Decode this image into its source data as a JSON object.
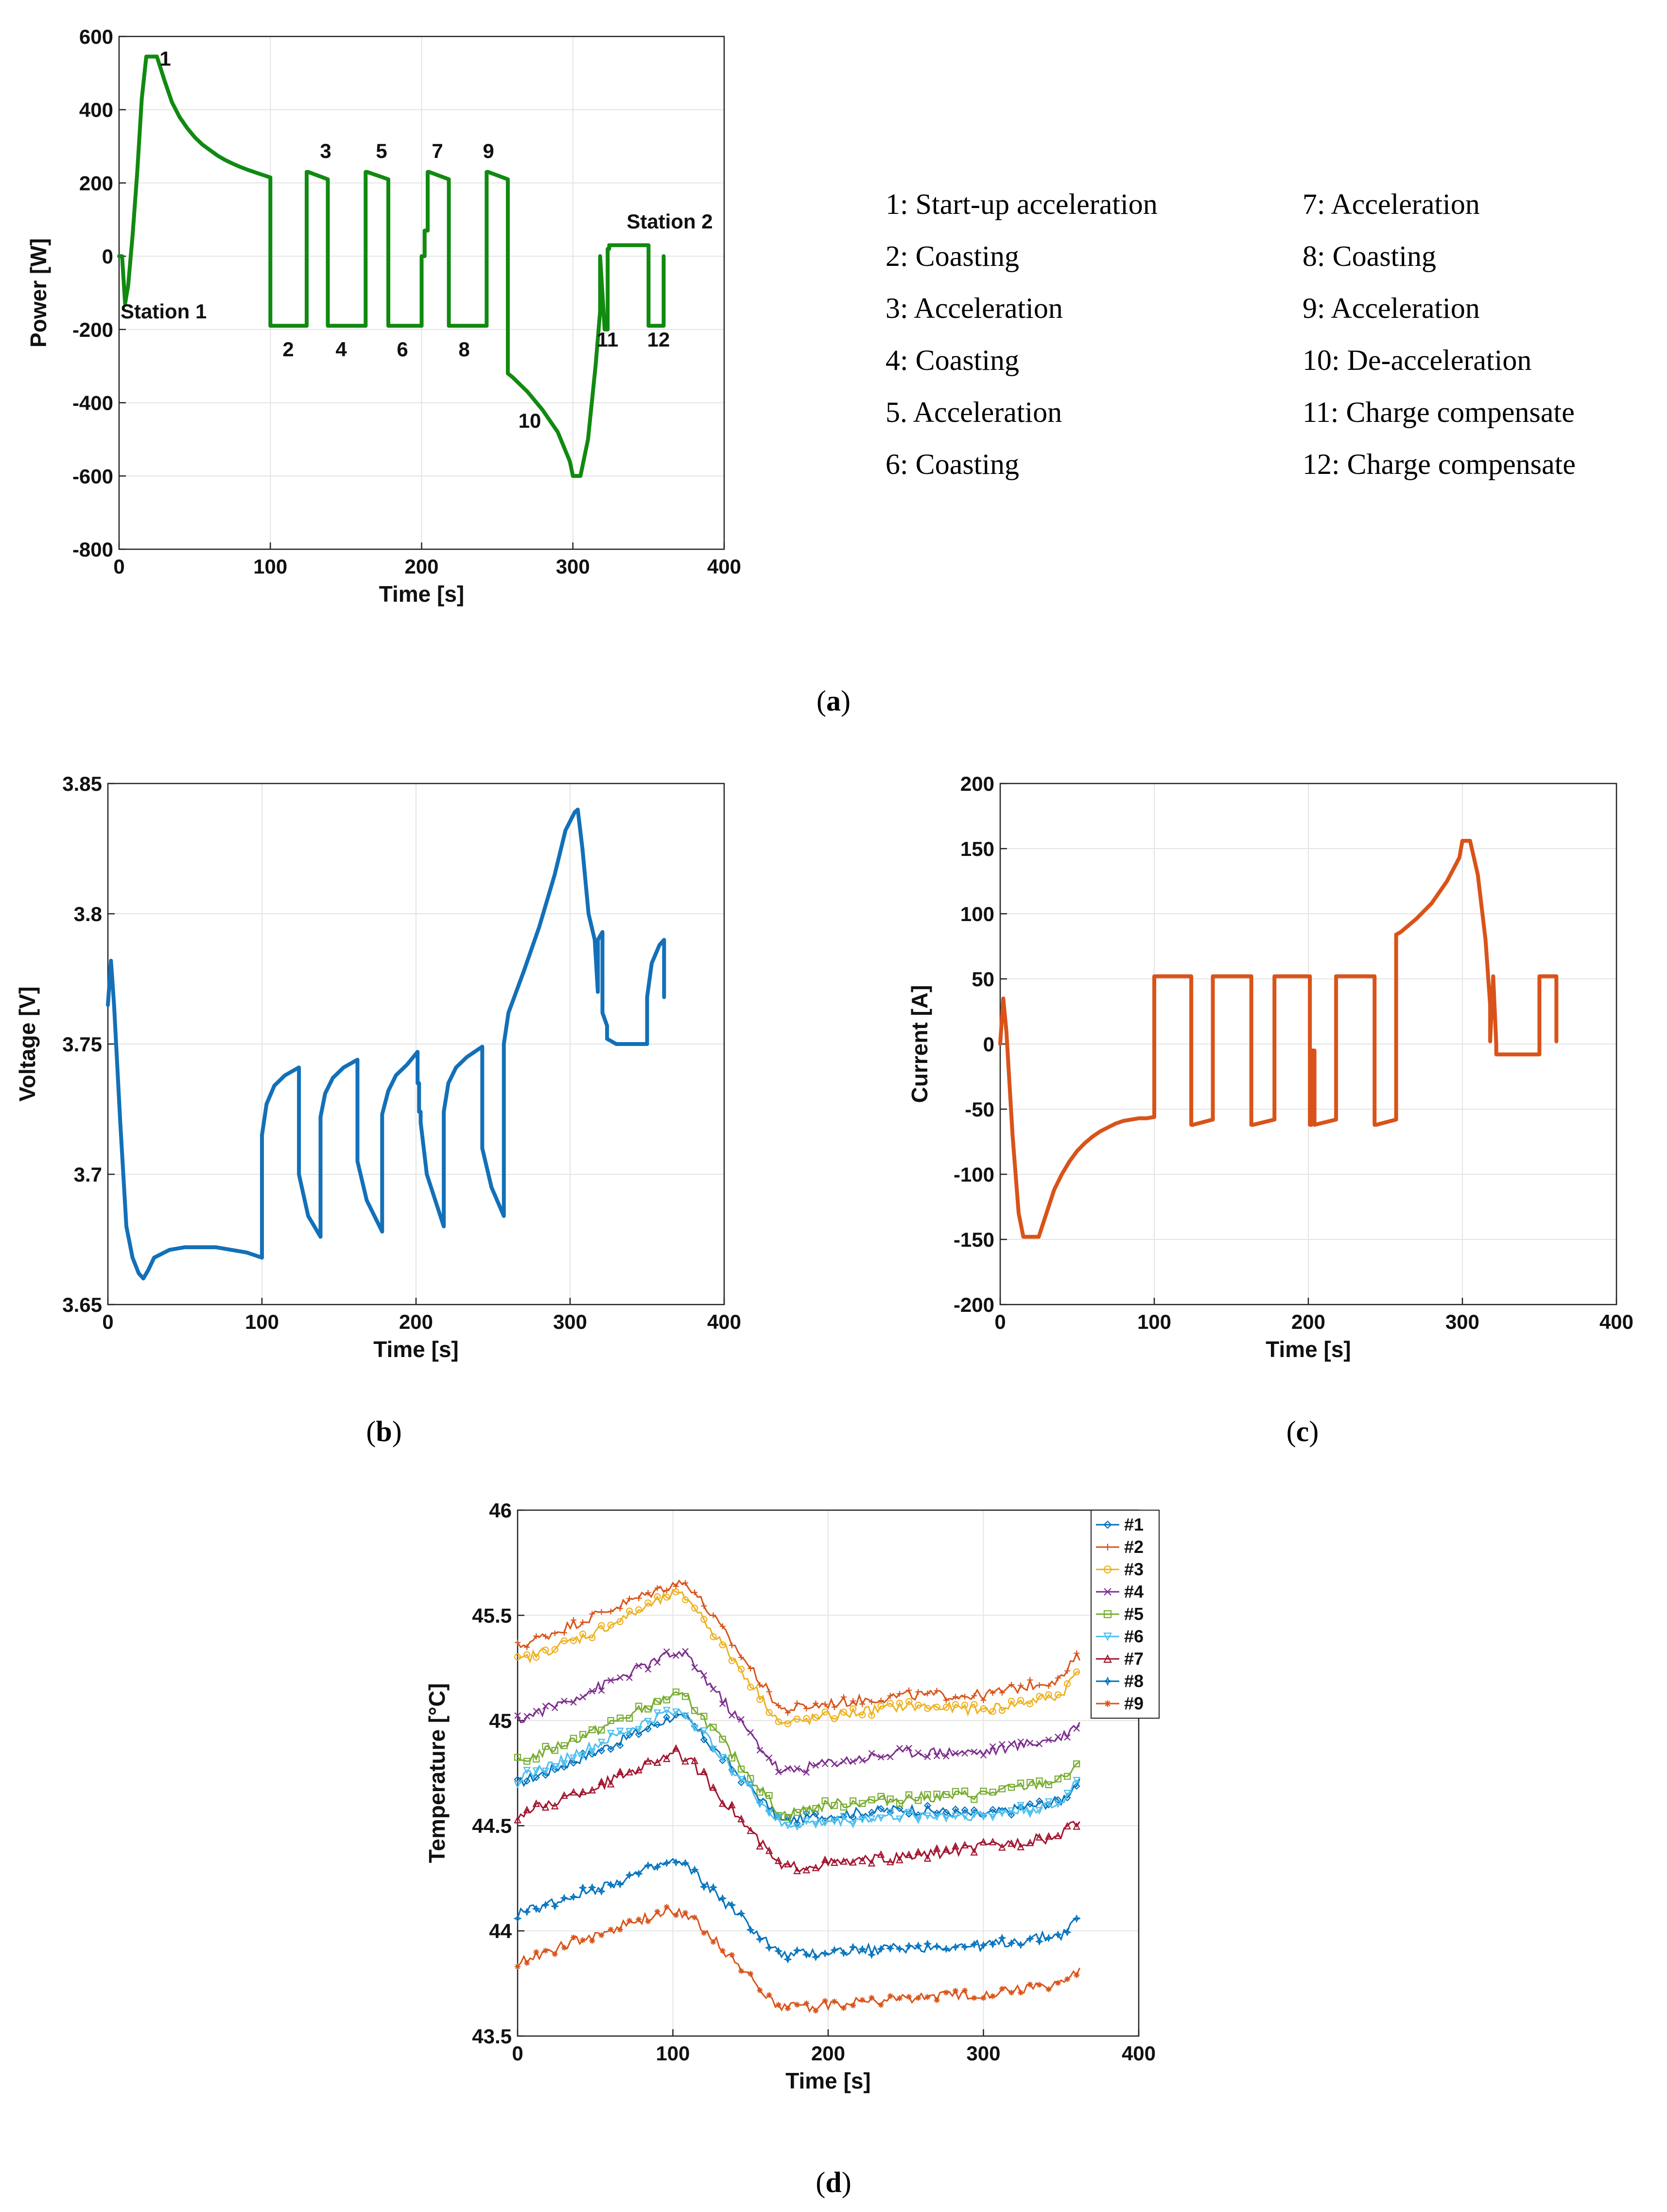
{
  "panels": {
    "a": {
      "caption": "a",
      "chart_data": {
        "type": "line",
        "xlabel": "Time [s]",
        "ylabel": "Power [W]",
        "xlim": [
          0,
          400
        ],
        "ylim": [
          -800,
          600
        ],
        "xticks": [
          0,
          100,
          200,
          300,
          400
        ],
        "yticks": [
          -800,
          -600,
          -400,
          -200,
          0,
          200,
          400,
          600
        ],
        "grid": true,
        "color": "#108a10",
        "series": [
          {
            "name": "Power",
            "x": [
              0,
              2,
              4,
              6,
              9,
              12,
              15,
              18,
              22,
              25,
              30,
              35,
              40,
              45,
              50,
              55,
              60,
              65,
              70,
              75,
              80,
              85,
              90,
              95,
              100,
              100,
              124,
              124,
              125,
              138,
              138,
              163,
              163,
              164,
              178,
              178,
              200,
              200,
              202,
              202,
              204,
              204,
              205,
              218,
              218,
              243,
              243,
              244,
              257,
              257,
              260,
              270,
              280,
              290,
              298,
              300,
              305,
              305,
              310,
              315,
              318,
              318,
              321,
              321,
              322,
              322,
              323,
              323,
              324,
              324,
              325,
              325,
              350,
              350,
              360,
              360
            ],
            "y": [
              0,
              0,
              -130,
              -80,
              60,
              230,
              430,
              545,
              545,
              545,
              480,
              420,
              380,
              350,
              325,
              305,
              290,
              275,
              263,
              253,
              244,
              236,
              229,
              222,
              215,
              -190,
              -190,
              230,
              230,
              210,
              -190,
              -190,
              230,
              230,
              210,
              -190,
              -190,
              0,
              0,
              70,
              70,
              230,
              230,
              210,
              -190,
              -190,
              230,
              230,
              210,
              -320,
              -330,
              -370,
              -420,
              -480,
              -560,
              -600,
              -600,
              -600,
              -500,
              -300,
              -150,
              0,
              -200,
              -190,
              -190,
              -200,
              -200,
              20,
              20,
              30,
              30,
              30,
              30,
              -190,
              -190,
              0
            ]
          }
        ],
        "annotations": [
          "1",
          "2",
          "3",
          "4",
          "5",
          "6",
          "7",
          "8",
          "9",
          "10",
          "11",
          "12",
          "Station 1",
          "Station 2"
        ]
      },
      "legend_left": [
        "1: Start-up acceleration",
        "2: Coasting",
        "3: Acceleration",
        "4: Coasting",
        "5. Acceleration",
        "6: Coasting"
      ],
      "legend_right": [
        "7: Acceleration",
        "8: Coasting",
        "9: Acceleration",
        "10: De-acceleration",
        "11: Charge compensate",
        "12: Charge compensate"
      ]
    },
    "b": {
      "caption": "b",
      "chart_data": {
        "type": "line",
        "xlabel": "Time [s]",
        "ylabel": "Voltage [V]",
        "xlim": [
          0,
          400
        ],
        "ylim": [
          3.65,
          3.85
        ],
        "xticks": [
          0,
          100,
          200,
          300,
          400
        ],
        "yticks": [
          3.65,
          3.7,
          3.75,
          3.8,
          3.85
        ],
        "ytick_labels": [
          "3.65",
          "3.7",
          "3.75",
          "3.8",
          "3.85"
        ],
        "grid": true,
        "color": "#1370b8",
        "series": [
          {
            "name": "Voltage",
            "x": [
              0,
              2,
              4,
              8,
              12,
              16,
              20,
              23,
              26,
              30,
              40,
              50,
              60,
              70,
              80,
              90,
              100,
              100,
              103,
              108,
              115,
              124,
              124,
              130,
              138,
              138,
              141,
              146,
              153,
              162,
              162,
              168,
              178,
              178,
              182,
              187,
              194,
              201,
              201,
              202,
              202,
              203,
              203,
              207,
              218,
              218,
              221,
              226,
              233,
              243,
              243,
              249,
              257,
              257,
              260,
              270,
              280,
              290,
              297,
              303,
              305,
              308,
              312,
              316,
              318,
              318,
              321,
              321,
              324,
              324,
              330,
              340,
              350,
              350,
              353,
              358,
              361,
              361
            ],
            "y": [
              3.765,
              3.782,
              3.765,
              3.72,
              3.68,
              3.668,
              3.662,
              3.66,
              3.663,
              3.668,
              3.671,
              3.672,
              3.672,
              3.672,
              3.671,
              3.67,
              3.668,
              3.715,
              3.727,
              3.734,
              3.738,
              3.741,
              3.7,
              3.684,
              3.676,
              3.722,
              3.731,
              3.737,
              3.741,
              3.744,
              3.705,
              3.69,
              3.678,
              3.723,
              3.732,
              3.738,
              3.742,
              3.747,
              3.735,
              3.735,
              3.724,
              3.724,
              3.72,
              3.7,
              3.68,
              3.724,
              3.735,
              3.741,
              3.745,
              3.749,
              3.71,
              3.695,
              3.684,
              3.75,
              3.762,
              3.778,
              3.795,
              3.815,
              3.832,
              3.839,
              3.84,
              3.825,
              3.8,
              3.79,
              3.77,
              3.79,
              3.793,
              3.762,
              3.757,
              3.752,
              3.75,
              3.75,
              3.75,
              3.768,
              3.781,
              3.788,
              3.79,
              3.768
            ]
          }
        ]
      }
    },
    "c": {
      "caption": "c",
      "chart_data": {
        "type": "line",
        "xlabel": "Time [s]",
        "ylabel": "Current [A]",
        "xlim": [
          0,
          400
        ],
        "ylim": [
          -200,
          200
        ],
        "xticks": [
          0,
          100,
          200,
          300,
          400
        ],
        "yticks": [
          -200,
          -150,
          -100,
          -50,
          0,
          50,
          100,
          150,
          200
        ],
        "grid": true,
        "color": "#d95319",
        "series": [
          {
            "name": "Current",
            "x": [
              0,
              2,
              4,
              8,
              12,
              15,
              22,
              25,
              30,
              35,
              40,
              45,
              50,
              55,
              60,
              65,
              70,
              75,
              80,
              85,
              90,
              95,
              100,
              100,
              124,
              124,
              125,
              138,
              138,
              163,
              163,
              164,
              178,
              178,
              201,
              201,
              202,
              202,
              204,
              204,
              218,
              218,
              243,
              243,
              244,
              257,
              257,
              260,
              270,
              280,
              290,
              298,
              300,
              305,
              305,
              310,
              315,
              318,
              318,
              320,
              320,
              322,
              322,
              323,
              323,
              350,
              350,
              361,
              361
            ],
            "y": [
              0,
              35,
              10,
              -70,
              -130,
              -148,
              -148,
              -148,
              -130,
              -112,
              -100,
              -90,
              -82,
              -76,
              -71,
              -67,
              -64,
              -61,
              -59,
              -58,
              -57,
              -57,
              -56,
              52,
              52,
              -62,
              -62,
              -58,
              52,
              52,
              -62,
              -62,
              -58,
              52,
              52,
              -62,
              -62,
              -5,
              -5,
              -62,
              -58,
              52,
              52,
              -62,
              -62,
              -58,
              84,
              86,
              96,
              108,
              125,
              143,
              156,
              156,
              156,
              130,
              80,
              30,
              2,
              52,
              52,
              0,
              -8,
              -8,
              -8,
              -8,
              52,
              52,
              2
            ]
          }
        ]
      }
    },
    "d": {
      "caption": "d",
      "chart_data": {
        "type": "line",
        "xlabel": "Time [s]",
        "ylabel": "Temperature [°C]",
        "xlim": [
          0,
          400
        ],
        "ylim": [
          43.5,
          46
        ],
        "xticks": [
          0,
          100,
          200,
          300,
          400
        ],
        "yticks": [
          43.5,
          44,
          44.5,
          45,
          45.5,
          46
        ],
        "ytick_labels": [
          "43.5",
          "44",
          "44.5",
          "45",
          "45.5",
          "46"
        ],
        "grid": true,
        "x": [
          0,
          50,
          100,
          110,
          170,
          200,
          250,
          300,
          350,
          360
        ],
        "series": [
          {
            "name": "#1",
            "color": "#0072bd",
            "marker": "diamond",
            "values": [
              44.7,
              44.85,
              45.02,
              45.0,
              44.52,
              44.55,
              44.58,
              44.55,
              44.62,
              44.7
            ]
          },
          {
            "name": "#2",
            "color": "#d95319",
            "marker": "plus",
            "values": [
              45.35,
              45.5,
              45.65,
              45.65,
              45.05,
              45.08,
              45.12,
              45.12,
              45.2,
              45.3
            ]
          },
          {
            "name": "#3",
            "color": "#edb120",
            "marker": "circle",
            "values": [
              45.28,
              45.42,
              45.6,
              45.58,
              44.98,
              45.02,
              45.07,
              45.05,
              45.12,
              45.23
            ]
          },
          {
            "name": "#4",
            "color": "#7e2f8e",
            "marker": "x",
            "values": [
              45.0,
              45.15,
              45.32,
              45.3,
              44.75,
              44.8,
              44.85,
              44.85,
              44.92,
              44.98
            ]
          },
          {
            "name": "#5",
            "color": "#77ac30",
            "marker": "square",
            "values": [
              44.8,
              44.95,
              45.12,
              45.1,
              44.55,
              44.6,
              44.63,
              44.65,
              44.72,
              44.78
            ]
          },
          {
            "name": "#6",
            "color": "#4dbeee",
            "marker": "triangle-down",
            "values": [
              44.72,
              44.88,
              45.05,
              45.02,
              44.5,
              44.52,
              44.55,
              44.55,
              44.6,
              44.72
            ]
          },
          {
            "name": "#7",
            "color": "#a2142f",
            "marker": "triangle-up",
            "values": [
              44.55,
              44.68,
              44.85,
              44.82,
              44.3,
              44.32,
              44.35,
              44.4,
              44.45,
              44.52
            ]
          },
          {
            "name": "#8",
            "color": "#0072bd",
            "marker": "star",
            "values": [
              44.08,
              44.2,
              44.33,
              44.3,
              43.88,
              43.9,
              43.92,
              43.93,
              43.98,
              44.05
            ]
          },
          {
            "name": "#9",
            "color": "#d95319",
            "marker": "asterisk",
            "values": [
              43.85,
              43.98,
              44.1,
              44.08,
              43.63,
              43.65,
              43.68,
              43.7,
              43.75,
              43.8
            ]
          }
        ]
      }
    }
  }
}
